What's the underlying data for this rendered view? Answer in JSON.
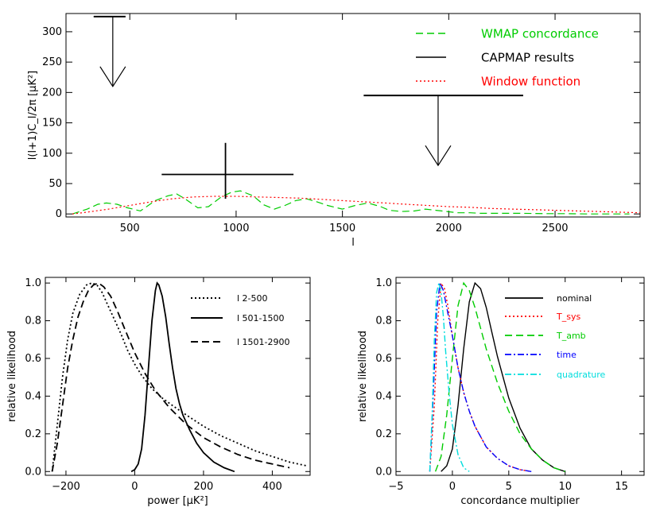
{
  "chart_data": [
    {
      "id": "top",
      "type": "line",
      "xlabel": "l",
      "ylabel": "l(l+1)C_l/2π [μK²]",
      "xlim": [
        200,
        2900
      ],
      "ylim": [
        -5,
        330
      ],
      "xticks": [
        500,
        1000,
        1500,
        2000,
        2500
      ],
      "yticks": [
        0,
        50,
        100,
        150,
        200,
        250,
        300
      ],
      "grid": false,
      "legend_position": "top-right",
      "legend": [
        {
          "label": "WMAP concordance",
          "color": "#00cc00",
          "style": "dashed"
        },
        {
          "label": "CAPMAP results",
          "color": "#000000",
          "style": "solid"
        },
        {
          "label": "Window function",
          "color": "#ff0000",
          "style": "dotted"
        }
      ],
      "series": [
        {
          "name": "WMAP concordance",
          "color": "#00cc00",
          "style": "dashed",
          "x": [
            230,
            300,
            350,
            390,
            440,
            490,
            550,
            620,
            680,
            720,
            760,
            820,
            870,
            930,
            980,
            1020,
            1080,
            1130,
            1180,
            1230,
            1280,
            1330,
            1380,
            1430,
            1500,
            1560,
            1620,
            1680,
            1720,
            1780,
            1840,
            1890,
            1940,
            1990,
            2040,
            2100,
            2150,
            2250,
            2350,
            2450,
            2550,
            2650,
            2750,
            2850
          ],
          "y": [
            0,
            8,
            16,
            18,
            16,
            10,
            5,
            22,
            30,
            33,
            25,
            10,
            12,
            28,
            36,
            38,
            30,
            15,
            8,
            14,
            22,
            25,
            20,
            14,
            8,
            14,
            18,
            12,
            6,
            4,
            5,
            8,
            6,
            4,
            2,
            2,
            1,
            1,
            1,
            0.5,
            0.5,
            0,
            0,
            0
          ]
        },
        {
          "name": "Window function",
          "color": "#ff0000",
          "style": "dotted",
          "x": [
            230,
            300,
            400,
            500,
            600,
            700,
            800,
            900,
            1000,
            1100,
            1200,
            1300,
            1400,
            1500,
            1600,
            1700,
            1800,
            1900,
            2000,
            2100,
            2200,
            2300,
            2400,
            2500,
            2600,
            2700,
            2800,
            2900
          ],
          "y": [
            0,
            3,
            8,
            14,
            20,
            25,
            28,
            29,
            29,
            28,
            27,
            26,
            24,
            22,
            20,
            18,
            16,
            14,
            12,
            11,
            9,
            8,
            7,
            6,
            5,
            4,
            3,
            2
          ]
        }
      ],
      "error_bars": [
        {
          "x": 950,
          "x_lo": 650,
          "x_hi": 1270,
          "y": 65,
          "y_lo": 25,
          "y_hi": 117
        },
        {
          "type": "upper_limit",
          "x": 420,
          "x_lo": 330,
          "x_hi": 480,
          "y": 325
        },
        {
          "type": "upper_limit",
          "x": 1950,
          "x_lo": 1600,
          "x_hi": 2350,
          "y": 195
        }
      ]
    },
    {
      "id": "bottom-left",
      "type": "line",
      "xlabel": "power [μK²]",
      "ylabel": "relative likelihood",
      "xlim": [
        -260,
        510
      ],
      "ylim": [
        -0.02,
        1.03
      ],
      "xticks": [
        -200,
        0,
        200,
        400
      ],
      "yticks": [
        0.0,
        0.2,
        0.4,
        0.6,
        0.8,
        1.0
      ],
      "ytick_labels": [
        "0.0",
        "0.2",
        "0.4",
        "0.6",
        "0.8",
        "1.0"
      ],
      "grid": false,
      "legend_position": "top-right",
      "series": [
        {
          "name": "l 2-500",
          "color": "#000000",
          "style": "dotted",
          "x": [
            -240,
            -225,
            -210,
            -195,
            -180,
            -160,
            -140,
            -125,
            -110,
            -95,
            -80,
            -60,
            -40,
            -20,
            0,
            20,
            50,
            80,
            110,
            150,
            200,
            250,
            300,
            350,
            400,
            450,
            500
          ],
          "y": [
            0.0,
            0.25,
            0.5,
            0.7,
            0.84,
            0.94,
            0.99,
            1.0,
            0.99,
            0.95,
            0.89,
            0.81,
            0.73,
            0.64,
            0.57,
            0.51,
            0.44,
            0.39,
            0.35,
            0.3,
            0.24,
            0.19,
            0.15,
            0.11,
            0.08,
            0.05,
            0.03
          ]
        },
        {
          "name": "l 501-1500",
          "color": "#000000",
          "style": "solid",
          "x": [
            -10,
            0,
            10,
            20,
            30,
            40,
            50,
            60,
            65,
            70,
            80,
            90,
            100,
            110,
            120,
            130,
            140,
            160,
            180,
            200,
            230,
            260,
            290
          ],
          "y": [
            0.0,
            0.01,
            0.04,
            0.12,
            0.3,
            0.55,
            0.8,
            0.96,
            1.0,
            0.99,
            0.93,
            0.82,
            0.68,
            0.55,
            0.44,
            0.36,
            0.3,
            0.22,
            0.15,
            0.1,
            0.05,
            0.02,
            0.0
          ]
        },
        {
          "name": "l 1501-2900",
          "color": "#000000",
          "style": "dashed",
          "x": [
            -240,
            -225,
            -210,
            -195,
            -180,
            -165,
            -150,
            -135,
            -120,
            -105,
            -90,
            -70,
            -50,
            -30,
            0,
            30,
            60,
            100,
            150,
            200,
            250,
            300,
            350,
            400,
            450
          ],
          "y": [
            0.0,
            0.15,
            0.35,
            0.55,
            0.7,
            0.82,
            0.9,
            0.96,
            0.99,
            1.0,
            0.98,
            0.93,
            0.85,
            0.76,
            0.63,
            0.52,
            0.43,
            0.34,
            0.25,
            0.18,
            0.13,
            0.09,
            0.06,
            0.04,
            0.02
          ]
        }
      ]
    },
    {
      "id": "bottom-right",
      "type": "line",
      "xlabel": "concordance multiplier",
      "ylabel": "relative likelihood",
      "xlim": [
        -5,
        17
      ],
      "ylim": [
        -0.02,
        1.03
      ],
      "xticks": [
        -5,
        0,
        5,
        10,
        15
      ],
      "yticks": [
        0.0,
        0.2,
        0.4,
        0.6,
        0.8,
        1.0
      ],
      "ytick_labels": [
        "0.0",
        "0.2",
        "0.4",
        "0.6",
        "0.8",
        "1.0"
      ],
      "grid": false,
      "legend_position": "top-right",
      "series": [
        {
          "name": "nominal",
          "color": "#000000",
          "style": "solid",
          "x": [
            -1,
            -0.5,
            0,
            0.5,
            1,
            1.5,
            2,
            2.5,
            3,
            3.5,
            4,
            5,
            6,
            7,
            8,
            9,
            10
          ],
          "y": [
            0.0,
            0.03,
            0.12,
            0.35,
            0.65,
            0.9,
            1.0,
            0.97,
            0.87,
            0.74,
            0.61,
            0.39,
            0.23,
            0.12,
            0.06,
            0.02,
            0.0
          ]
        },
        {
          "name": "T_sys",
          "color": "#ff0000",
          "style": "dotted",
          "x": [
            -2.0,
            -1.6,
            -1.3,
            -1.0,
            -0.7,
            -0.4,
            0,
            0.5,
            1,
            1.5,
            2,
            3,
            4,
            5,
            6,
            7
          ],
          "y": [
            0.0,
            0.35,
            0.8,
            1.0,
            0.97,
            0.88,
            0.72,
            0.55,
            0.42,
            0.32,
            0.24,
            0.13,
            0.07,
            0.03,
            0.01,
            0.0
          ]
        },
        {
          "name": "T_amb",
          "color": "#00cc00",
          "style": "dashed",
          "x": [
            -1.5,
            -1.0,
            -0.5,
            0,
            0.5,
            1.0,
            1.5,
            2.0,
            2.5,
            3,
            4,
            5,
            6,
            7,
            8,
            9,
            10
          ],
          "y": [
            0.0,
            0.08,
            0.3,
            0.6,
            0.88,
            1.0,
            0.96,
            0.87,
            0.76,
            0.65,
            0.47,
            0.32,
            0.2,
            0.12,
            0.06,
            0.02,
            0.0
          ]
        },
        {
          "name": "time",
          "color": "#0000ff",
          "style": "dashdot",
          "x": [
            -2.0,
            -1.7,
            -1.4,
            -1.1,
            -0.8,
            -0.5,
            0,
            0.5,
            1,
            1.5,
            2,
            3,
            4,
            5,
            6,
            7
          ],
          "y": [
            0.0,
            0.4,
            0.85,
            1.0,
            0.96,
            0.87,
            0.72,
            0.55,
            0.42,
            0.32,
            0.24,
            0.13,
            0.07,
            0.03,
            0.01,
            0.0
          ]
        },
        {
          "name": "quadrature",
          "color": "#00dddd",
          "style": "dashdot",
          "x": [
            -2.0,
            -1.8,
            -1.6,
            -1.4,
            -1.2,
            -1.0,
            -0.8,
            -0.6,
            -0.3,
            0,
            0.5,
            1.0,
            1.5
          ],
          "y": [
            0.0,
            0.3,
            0.7,
            0.95,
            1.0,
            0.95,
            0.82,
            0.64,
            0.42,
            0.25,
            0.09,
            0.02,
            0.0
          ]
        }
      ]
    }
  ]
}
